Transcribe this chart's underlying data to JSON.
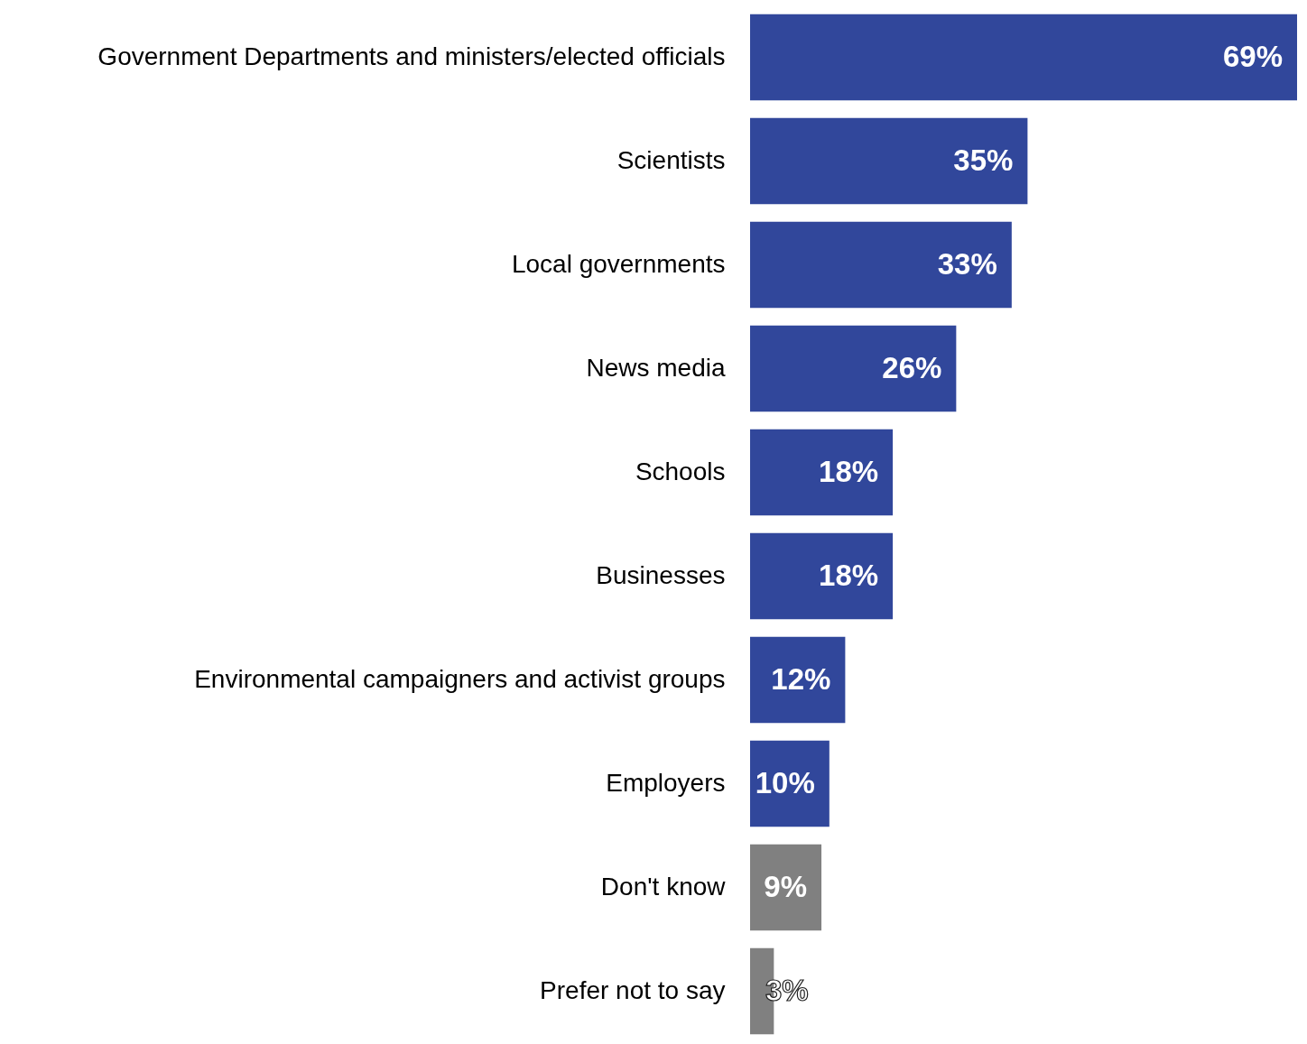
{
  "chart_data": {
    "type": "bar",
    "orientation": "horizontal",
    "categories": [
      "Government Departments and ministers/elected officials",
      "Scientists",
      "Local governments",
      "News media",
      "Schools",
      "Businesses",
      "Environmental campaigners and activist groups",
      "Employers",
      "Don't know",
      "Prefer not to say"
    ],
    "values": [
      69,
      35,
      33,
      26,
      18,
      18,
      12,
      10,
      9,
      3
    ],
    "value_labels": [
      "69%",
      "35%",
      "33%",
      "26%",
      "18%",
      "18%",
      "12%",
      "10%",
      "9%",
      "3%"
    ],
    "colors": [
      "#31479b",
      "#31479b",
      "#31479b",
      "#31479b",
      "#31479b",
      "#31479b",
      "#31479b",
      "#31479b",
      "#808080",
      "#808080"
    ],
    "xlim": [
      0,
      69
    ],
    "tick_labels": "y"
  }
}
